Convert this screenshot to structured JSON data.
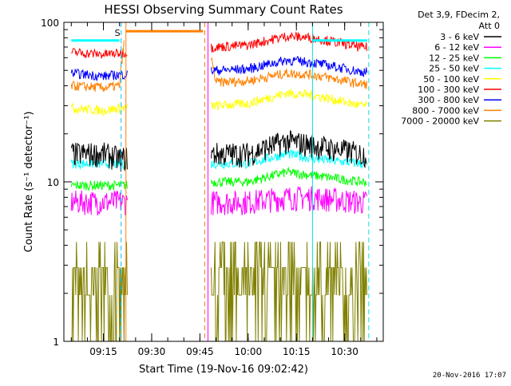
{
  "chart_data": {
    "type": "line",
    "title": "HESSI Observing Summary Count Rates",
    "xlabel": "Start Time (19-Nov-16 09:02:42)",
    "ylabel": "Count Rate (s⁻¹ detector⁻¹)",
    "y_scale": "log",
    "ylim": [
      1,
      100
    ],
    "xlim": [
      "09:02:42",
      "10:42:00"
    ],
    "y_ticks": [
      "1",
      "10",
      "100"
    ],
    "x_ticks": [
      "09:15",
      "09:30",
      "09:45",
      "10:00",
      "10:15",
      "10:30"
    ],
    "legend_header": [
      "Det 3,9, FDecim 2,",
      "Att 0"
    ],
    "legend_position": "top-right outside",
    "annotation": "S",
    "gap": [
      "09:22:30",
      "09:48:30"
    ],
    "markers": [
      {
        "time": "09:20:30",
        "color": "#00c0ff",
        "style": "dashed"
      },
      {
        "time": "09:22:00",
        "color": "#ff8000",
        "style": "solid"
      },
      {
        "time": "09:46:30",
        "color": "#ff8000",
        "style": "dashed"
      },
      {
        "time": "09:47:30",
        "color": "#ff00ff",
        "style": "solid"
      },
      {
        "time": "10:20:00",
        "color": "#00e0e0",
        "style": "solid"
      },
      {
        "time": "10:37:30",
        "color": "#00e0e0",
        "style": "dashed"
      }
    ],
    "series": [
      {
        "name": "3 - 6 keV",
        "color": "#000000",
        "values": [
          {
            "x": "09:05",
            "y": 15
          },
          {
            "x": "09:15",
            "y": 15
          },
          {
            "x": "09:20",
            "y": 14
          },
          {
            "x": "09:50",
            "y": 15
          },
          {
            "x": "10:00",
            "y": 15
          },
          {
            "x": "10:12",
            "y": 18
          },
          {
            "x": "10:20",
            "y": 17
          },
          {
            "x": "10:35",
            "y": 15
          }
        ]
      },
      {
        "name": "6 - 12 keV",
        "color": "#ff00ff",
        "values": [
          {
            "x": "09:05",
            "y": 7.5
          },
          {
            "x": "09:15",
            "y": 7.5
          },
          {
            "x": "09:20",
            "y": 7.5
          },
          {
            "x": "09:50",
            "y": 7.5
          },
          {
            "x": "10:00",
            "y": 7.5
          },
          {
            "x": "10:12",
            "y": 8
          },
          {
            "x": "10:20",
            "y": 8
          },
          {
            "x": "10:35",
            "y": 7.5
          }
        ]
      },
      {
        "name": "12 - 25 keV",
        "color": "#00ff00",
        "values": [
          {
            "x": "09:05",
            "y": 9.5
          },
          {
            "x": "09:15",
            "y": 9.5
          },
          {
            "x": "09:20",
            "y": 9.5
          },
          {
            "x": "09:50",
            "y": 10
          },
          {
            "x": "10:00",
            "y": 10
          },
          {
            "x": "10:12",
            "y": 11.5
          },
          {
            "x": "10:20",
            "y": 11
          },
          {
            "x": "10:35",
            "y": 10
          }
        ]
      },
      {
        "name": "25 - 50 keV",
        "color": "#00ffff",
        "values": [
          {
            "x": "09:05",
            "y": 13
          },
          {
            "x": "09:15",
            "y": 13
          },
          {
            "x": "09:20",
            "y": 13
          },
          {
            "x": "09:50",
            "y": 13
          },
          {
            "x": "10:00",
            "y": 13
          },
          {
            "x": "10:12",
            "y": 15
          },
          {
            "x": "10:20",
            "y": 14
          },
          {
            "x": "10:35",
            "y": 13
          }
        ]
      },
      {
        "name": "50 - 100 keV",
        "color": "#ffff00",
        "values": [
          {
            "x": "09:05",
            "y": 29
          },
          {
            "x": "09:15",
            "y": 28
          },
          {
            "x": "09:20",
            "y": 29
          },
          {
            "x": "09:50",
            "y": 30
          },
          {
            "x": "10:00",
            "y": 31
          },
          {
            "x": "10:12",
            "y": 36
          },
          {
            "x": "10:20",
            "y": 35
          },
          {
            "x": "10:35",
            "y": 30
          }
        ]
      },
      {
        "name": "100 - 300 keV",
        "color": "#ff0000",
        "values": [
          {
            "x": "09:05",
            "y": 65
          },
          {
            "x": "09:15",
            "y": 63
          },
          {
            "x": "09:20",
            "y": 64
          },
          {
            "x": "09:50",
            "y": 70
          },
          {
            "x": "10:00",
            "y": 72
          },
          {
            "x": "10:12",
            "y": 82
          },
          {
            "x": "10:20",
            "y": 80
          },
          {
            "x": "10:35",
            "y": 70
          }
        ]
      },
      {
        "name": "300 - 800 keV",
        "color": "#0000ff",
        "values": [
          {
            "x": "09:05",
            "y": 48
          },
          {
            "x": "09:15",
            "y": 46
          },
          {
            "x": "09:20",
            "y": 47
          },
          {
            "x": "09:50",
            "y": 50
          },
          {
            "x": "10:00",
            "y": 51
          },
          {
            "x": "10:12",
            "y": 58
          },
          {
            "x": "10:20",
            "y": 56
          },
          {
            "x": "10:35",
            "y": 49
          }
        ]
      },
      {
        "name": "800 - 7000 keV",
        "color": "#ff8000",
        "values": [
          {
            "x": "09:05",
            "y": 40
          },
          {
            "x": "09:15",
            "y": 39
          },
          {
            "x": "09:20",
            "y": 40
          },
          {
            "x": "09:22",
            "y": 88
          },
          {
            "x": "09:46",
            "y": 88
          },
          {
            "x": "09:50",
            "y": 42
          },
          {
            "x": "10:00",
            "y": 43
          },
          {
            "x": "10:12",
            "y": 48
          },
          {
            "x": "10:20",
            "y": 47
          },
          {
            "x": "10:35",
            "y": 41
          }
        ]
      },
      {
        "name": "7000 - 20000 keV",
        "color": "#808000",
        "values": [
          {
            "x": "09:05",
            "y": 2.5
          },
          {
            "x": "09:15",
            "y": 2.5
          },
          {
            "x": "09:20",
            "y": 2.5
          },
          {
            "x": "09:50",
            "y": 2.5
          },
          {
            "x": "10:00",
            "y": 2.5
          },
          {
            "x": "10:12",
            "y": 2.5
          },
          {
            "x": "10:20",
            "y": 2.6
          },
          {
            "x": "10:35",
            "y": 2.5
          }
        ]
      }
    ],
    "attenuator_trace": {
      "color": "#00ffff",
      "values": [
        {
          "x": "09:05",
          "y": 77
        },
        {
          "x": "09:20",
          "y": 77
        },
        {
          "x": "10:20",
          "y": 77
        },
        {
          "x": "10:37",
          "y": 77
        }
      ]
    }
  },
  "timestamp": "20-Nov-2016 17:07"
}
